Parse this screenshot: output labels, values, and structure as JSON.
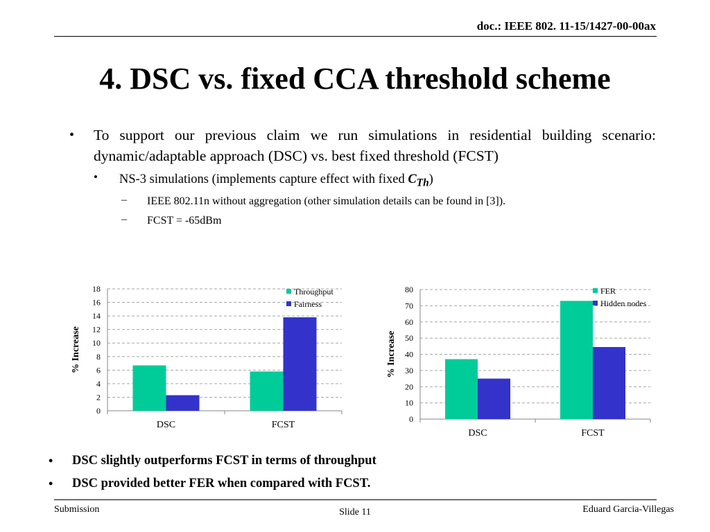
{
  "header": {
    "doc_id": "doc.: IEEE 802. 11-15/1427-00-00ax"
  },
  "title": "4. DSC vs. fixed CCA threshold scheme",
  "bullets": {
    "level1_text": "To support our previous claim we run simulations in residential building scenario: dynamic/adaptable approach (DSC) vs. best fixed threshold (FCST)",
    "level2_prefix": "NS-3 simulations (implements capture effect with fixed ",
    "level2_symbol": "C",
    "level2_subscript": "Th",
    "level2_suffix": ")",
    "level3_items": [
      "IEEE 802.11n without aggregation (other simulation details can be found in [3]).",
      "FCST = -65dBm"
    ]
  },
  "chart_data": [
    {
      "type": "bar",
      "categories": [
        "DSC",
        "FCST"
      ],
      "series": [
        {
          "name": "Throughput",
          "values": [
            6.7,
            5.8
          ],
          "color": "#00CC99"
        },
        {
          "name": "Fairness",
          "values": [
            2.3,
            13.8
          ],
          "color": "#3333CC"
        }
      ],
      "ylabel": "% Increase",
      "ylim": [
        0,
        18
      ],
      "yticks": [
        0,
        2,
        4,
        6,
        8,
        10,
        12,
        14,
        16,
        18
      ],
      "grid": "dashed horizontal",
      "legend": "top-right"
    },
    {
      "type": "bar",
      "categories": [
        "DSC",
        "FCST"
      ],
      "series": [
        {
          "name": "FER",
          "values": [
            37,
            73
          ],
          "color": "#00CC99"
        },
        {
          "name": "Hidden nodes",
          "values": [
            25,
            44.5
          ],
          "color": "#3333CC"
        }
      ],
      "ylabel": "% Increase",
      "ylim": [
        0,
        80
      ],
      "yticks": [
        0,
        10,
        20,
        30,
        40,
        50,
        60,
        70,
        80
      ],
      "grid": "dashed horizontal",
      "legend": "top-right"
    }
  ],
  "conclusions": [
    "DSC slightly outperforms FCST in terms of throughput",
    "DSC provided better FER when compared with FCST."
  ],
  "footer": {
    "left": "Submission",
    "center": "Slide 11",
    "right": "Eduard Garcia-Villegas"
  }
}
